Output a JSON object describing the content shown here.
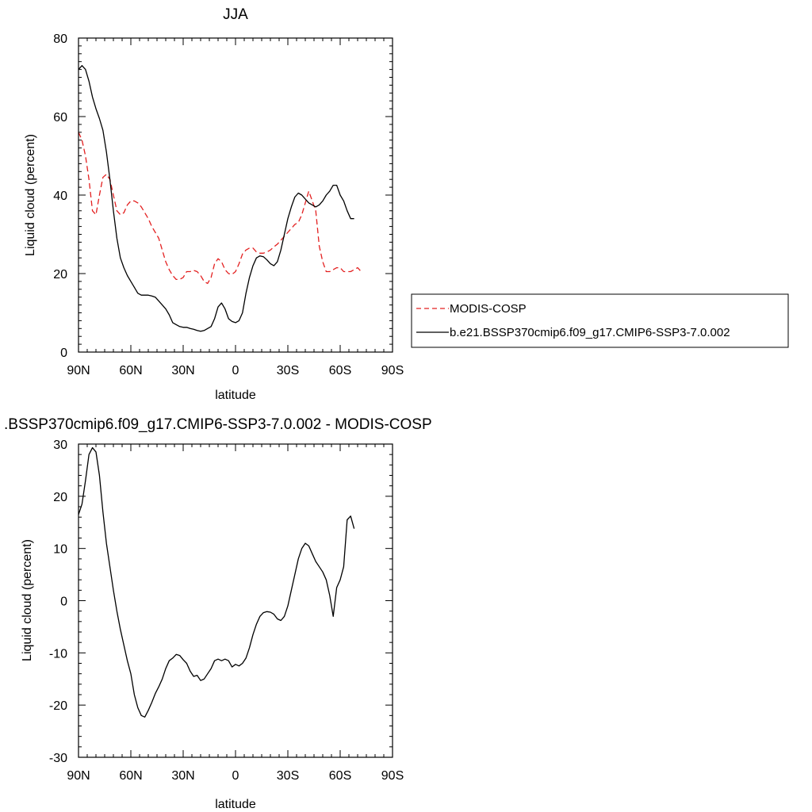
{
  "chart_data": [
    {
      "type": "line",
      "title": "JJA",
      "xlabel": "latitude",
      "ylabel": "Liquid cloud (percent)",
      "xlim": [
        90,
        -90
      ],
      "ylim": [
        0,
        80
      ],
      "x_ticks": [
        {
          "value": 90,
          "label": "90N"
        },
        {
          "value": 60,
          "label": "60N"
        },
        {
          "value": 30,
          "label": "30N"
        },
        {
          "value": 0,
          "label": "0"
        },
        {
          "value": -30,
          "label": "30S"
        },
        {
          "value": -60,
          "label": "60S"
        },
        {
          "value": -90,
          "label": "90S"
        }
      ],
      "y_ticks": [
        {
          "value": 0,
          "label": "0"
        },
        {
          "value": 20,
          "label": "20"
        },
        {
          "value": 40,
          "label": "40"
        },
        {
          "value": 60,
          "label": "60"
        },
        {
          "value": 80,
          "label": "80"
        }
      ],
      "legend_position": "right",
      "series": [
        {
          "name": "MODIS-COSP",
          "style": "dashed",
          "color": "#e32020",
          "x": [
            90,
            88,
            86,
            84,
            82,
            80,
            78,
            76,
            74,
            72,
            70,
            68,
            66,
            64,
            62,
            60,
            58,
            56,
            54,
            52,
            50,
            48,
            46,
            44,
            42,
            40,
            38,
            36,
            34,
            32,
            30,
            28,
            26,
            24,
            22,
            20,
            18,
            16,
            14,
            12,
            10,
            8,
            6,
            4,
            2,
            0,
            -2,
            -4,
            -6,
            -8,
            -10,
            -12,
            -14,
            -16,
            -18,
            -20,
            -22,
            -24,
            -26,
            -28,
            -30,
            -32,
            -34,
            -36,
            -38,
            -40,
            -42,
            -44,
            -46,
            -48,
            -50,
            -52,
            -54,
            -56,
            -58,
            -60,
            -62,
            -64,
            -66,
            -68,
            -70,
            -72
          ],
          "y": [
            56,
            54,
            50,
            44,
            36,
            35,
            40,
            44.5,
            45.3,
            44,
            40,
            36,
            35,
            35.5,
            37.5,
            38.5,
            38.5,
            38,
            37,
            35.5,
            34,
            32,
            30.5,
            29,
            26,
            23,
            21,
            19.5,
            18.5,
            18.5,
            19,
            20.5,
            20.5,
            20.8,
            20.5,
            19.5,
            18,
            17.5,
            19,
            22.5,
            23.8,
            23,
            21,
            20,
            19.8,
            20.5,
            22.5,
            25,
            26,
            26.5,
            26.5,
            25.5,
            25.2,
            25.2,
            25.5,
            26,
            26.8,
            27.5,
            28.5,
            29.5,
            30.5,
            31.5,
            32.5,
            33,
            35,
            38,
            41,
            38.5,
            36,
            27,
            23,
            20.5,
            20.5,
            21,
            21.5,
            21.5,
            20.5,
            20.5,
            20.5,
            21,
            21.5,
            20.5
          ]
        },
        {
          "name": "b.e21.BSSP370cmip6.f09_g17.CMIP6-SSP3-7.0.002",
          "style": "solid",
          "color": "#000000",
          "x": [
            90,
            88,
            86,
            84,
            82,
            80,
            78,
            76,
            74,
            72,
            70,
            68,
            66,
            64,
            62,
            60,
            58,
            56,
            54,
            52,
            50,
            48,
            46,
            44,
            42,
            40,
            38,
            36,
            34,
            32,
            30,
            28,
            26,
            24,
            22,
            20,
            18,
            16,
            14,
            12,
            10,
            8,
            6,
            4,
            2,
            0,
            -2,
            -4,
            -6,
            -8,
            -10,
            -12,
            -14,
            -16,
            -18,
            -20,
            -22,
            -24,
            -26,
            -28,
            -30,
            -32,
            -34,
            -36,
            -38,
            -40,
            -42,
            -44,
            -46,
            -48,
            -50,
            -52,
            -54,
            -56,
            -58,
            -60,
            -62,
            -64,
            -66,
            -68
          ],
          "y": [
            72,
            73,
            72,
            69,
            65,
            62,
            59.5,
            56.5,
            51,
            44,
            36,
            29,
            24,
            21.5,
            19.5,
            18,
            16.5,
            15,
            14.5,
            14.5,
            14.5,
            14.3,
            14,
            13,
            12,
            11,
            9.5,
            7.5,
            7,
            6.5,
            6.3,
            6.3,
            6,
            5.8,
            5.5,
            5.3,
            5.5,
            6,
            6.5,
            8.5,
            11.5,
            12.5,
            11,
            8.5,
            7.8,
            7.5,
            8,
            10,
            15,
            19,
            22,
            24,
            24.5,
            24.3,
            23.5,
            22.5,
            22,
            23,
            26,
            30,
            34,
            37,
            39.5,
            40.5,
            40,
            39,
            38,
            37.5,
            37,
            37.5,
            38.5,
            40,
            41,
            42.5,
            42.5,
            40,
            38.5,
            36,
            34,
            34
          ]
        }
      ]
    },
    {
      "type": "line",
      "title": ".BSSP370cmip6.f09_g17.CMIP6-SSP3-7.0.002 - MODIS-COSP",
      "xlabel": "latitude",
      "ylabel": "Liquid cloud (percent)",
      "xlim": [
        90,
        -90
      ],
      "ylim": [
        -30,
        30
      ],
      "x_ticks": [
        {
          "value": 90,
          "label": "90N"
        },
        {
          "value": 60,
          "label": "60N"
        },
        {
          "value": 30,
          "label": "30N"
        },
        {
          "value": 0,
          "label": "0"
        },
        {
          "value": -30,
          "label": "30S"
        },
        {
          "value": -60,
          "label": "60S"
        },
        {
          "value": -90,
          "label": "90S"
        }
      ],
      "y_ticks": [
        {
          "value": -30,
          "label": "-30"
        },
        {
          "value": -20,
          "label": "-20"
        },
        {
          "value": -10,
          "label": "-10"
        },
        {
          "value": 0,
          "label": "0"
        },
        {
          "value": 10,
          "label": "10"
        },
        {
          "value": 20,
          "label": "20"
        },
        {
          "value": 30,
          "label": "30"
        }
      ],
      "series": [
        {
          "style": "solid",
          "color": "#000000",
          "x": [
            90,
            88,
            86,
            84,
            82,
            80,
            78,
            76,
            74,
            72,
            70,
            68,
            66,
            64,
            62,
            60,
            58,
            56,
            54,
            52,
            50,
            48,
            46,
            44,
            42,
            40,
            38,
            36,
            34,
            32,
            30,
            28,
            26,
            24,
            22,
            20,
            18,
            16,
            14,
            12,
            10,
            8,
            6,
            4,
            2,
            0,
            -2,
            -4,
            -6,
            -8,
            -10,
            -12,
            -14,
            -16,
            -18,
            -20,
            -22,
            -24,
            -26,
            -28,
            -30,
            -32,
            -34,
            -36,
            -38,
            -40,
            -42,
            -44,
            -46,
            -48,
            -50,
            -52,
            -54,
            -56,
            -58,
            -60,
            -62,
            -64,
            -66,
            -68
          ],
          "y": [
            16.5,
            18.5,
            23,
            28,
            29.3,
            28.5,
            24,
            17,
            11,
            6.5,
            2,
            -2,
            -5.5,
            -8.5,
            -11.5,
            -14,
            -18,
            -20.5,
            -22,
            -22.3,
            -21,
            -19.5,
            -17.8,
            -16.5,
            -15,
            -13,
            -11.5,
            -11,
            -10.3,
            -10.5,
            -11.3,
            -12,
            -13.5,
            -14.5,
            -14.3,
            -15.3,
            -15,
            -14,
            -13,
            -11.5,
            -11.2,
            -11.5,
            -11.2,
            -11.5,
            -12.7,
            -12.2,
            -12.5,
            -12,
            -11,
            -9,
            -6.5,
            -4.5,
            -3,
            -2.3,
            -2.1,
            -2.2,
            -2.6,
            -3.5,
            -3.8,
            -3,
            -1,
            2,
            5,
            8,
            10,
            11,
            10.5,
            9,
            7.5,
            6.5,
            5.5,
            4,
            1,
            -3,
            2.5,
            4,
            6.5,
            15.5,
            16.2,
            13.8
          ]
        }
      ]
    }
  ]
}
